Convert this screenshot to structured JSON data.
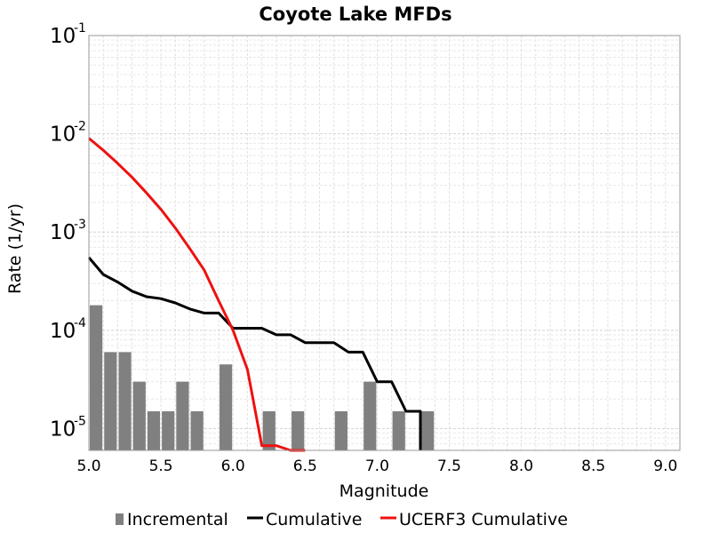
{
  "chart_data": {
    "type": "bar+line",
    "title": "Coyote Lake MFDs",
    "xlabel": "Magnitude",
    "ylabel": "Rate (1/yr)",
    "xlim": [
      5.0,
      9.1
    ],
    "ylim": [
      6e-06,
      0.1
    ],
    "yscale": "log",
    "x_ticks": [
      "5.0",
      "5.5",
      "6.0",
      "6.5",
      "7.0",
      "7.5",
      "8.0",
      "8.5",
      "9.0"
    ],
    "y_ticks": [
      {
        "base": "10",
        "exp": "-1",
        "value": 0.1
      },
      {
        "base": "10",
        "exp": "-2",
        "value": 0.01
      },
      {
        "base": "10",
        "exp": "-3",
        "value": 0.001
      },
      {
        "base": "10",
        "exp": "-4",
        "value": 0.0001
      },
      {
        "base": "10",
        "exp": "-5",
        "value": 1e-05
      }
    ],
    "grid": true,
    "legend_position": "bottom",
    "legend": [
      "Incremental",
      "Cumulative",
      "UCERF3 Cumulative"
    ],
    "series": [
      {
        "name": "Incremental",
        "type": "bar",
        "color": "#808080",
        "x": [
          5.05,
          5.15,
          5.25,
          5.35,
          5.45,
          5.55,
          5.65,
          5.75,
          5.95,
          6.25,
          6.45,
          6.75,
          6.95,
          7.15,
          7.35
        ],
        "values": [
          0.00018,
          6e-05,
          6e-05,
          3e-05,
          1.5e-05,
          1.5e-05,
          3e-05,
          1.5e-05,
          4.5e-05,
          1.5e-05,
          1.5e-05,
          1.5e-05,
          3e-05,
          1.5e-05,
          1.5e-05
        ]
      },
      {
        "name": "Cumulative",
        "type": "line",
        "color": "#000000",
        "x": [
          5.0,
          5.1,
          5.2,
          5.3,
          5.4,
          5.5,
          5.6,
          5.7,
          5.8,
          5.9,
          6.0,
          6.1,
          6.2,
          6.3,
          6.4,
          6.5,
          6.6,
          6.7,
          6.8,
          6.9,
          7.0,
          7.1,
          7.2,
          7.3,
          7.3
        ],
        "values": [
          0.00055,
          0.00037,
          0.00031,
          0.00025,
          0.00022,
          0.00021,
          0.00019,
          0.000165,
          0.00015,
          0.00015,
          0.000105,
          0.000105,
          0.000105,
          9e-05,
          9e-05,
          7.5e-05,
          7.5e-05,
          7.5e-05,
          6e-05,
          6e-05,
          3e-05,
          3e-05,
          1.5e-05,
          1.5e-05,
          6e-06
        ]
      },
      {
        "name": "UCERF3 Cumulative",
        "type": "line",
        "color": "#ee1111",
        "x": [
          5.0,
          5.1,
          5.2,
          5.3,
          5.4,
          5.5,
          5.6,
          5.7,
          5.8,
          5.9,
          6.0,
          6.1,
          6.2,
          6.3,
          6.4,
          6.5
        ],
        "values": [
          0.009,
          0.0068,
          0.005,
          0.0036,
          0.0025,
          0.0017,
          0.0011,
          0.00068,
          0.00041,
          0.0002,
          0.0001,
          4e-05,
          6.7e-06,
          6.7e-06,
          6e-06,
          5.5e-06
        ]
      }
    ]
  }
}
